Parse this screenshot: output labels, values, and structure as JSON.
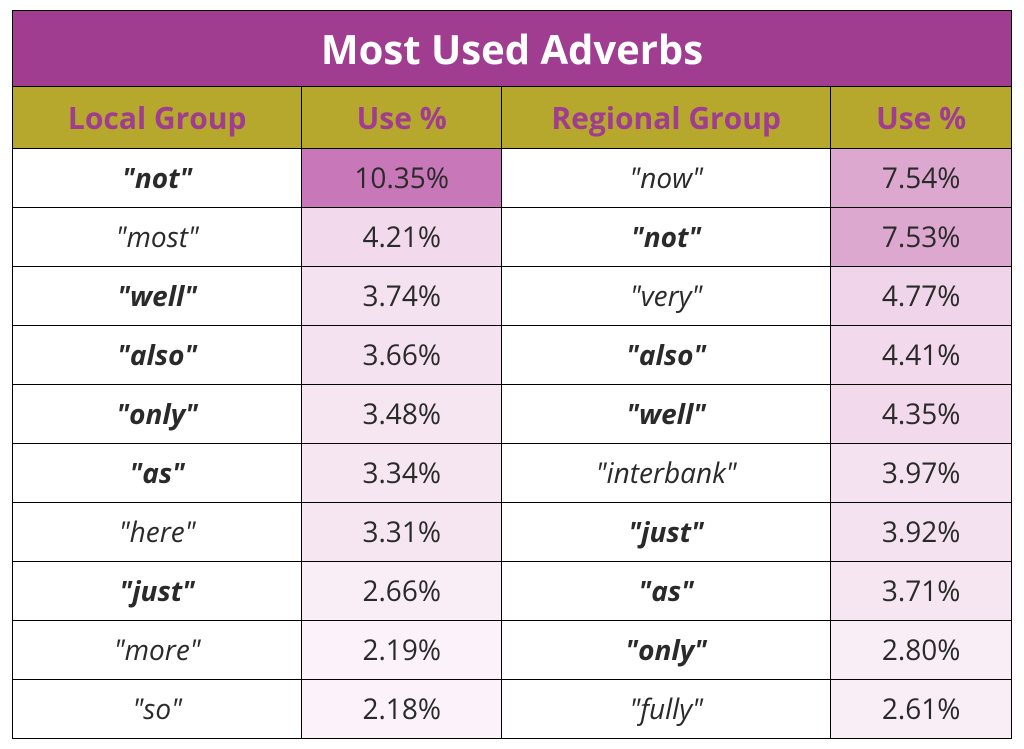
{
  "title": "Most Used Adverbs",
  "title_bg": "#a03d91",
  "title_color": "#ffffff",
  "header_bg": "#b5a82c",
  "header_color": "#a03d91",
  "columns": [
    {
      "label": "Local Group",
      "width": "29%"
    },
    {
      "label": "Use %",
      "width": "20%"
    },
    {
      "label": "Regional Group",
      "width": "33%"
    },
    {
      "label": "Use %",
      "width": "18%"
    }
  ],
  "rows": [
    {
      "local_word": "\"not\"",
      "local_bold": true,
      "local_pct": "10.35%",
      "local_pct_bg": "#c878b8",
      "regional_word": "\"now\"",
      "regional_bold": false,
      "regional_pct": "7.54%",
      "regional_pct_bg": "#dca8d0"
    },
    {
      "local_word": "\"most\"",
      "local_bold": false,
      "local_pct": "4.21%",
      "local_pct_bg": "#f2d9ec",
      "regional_word": "\"not\"",
      "regional_bold": true,
      "regional_pct": "7.53%",
      "regional_pct_bg": "#dca8d0"
    },
    {
      "local_word": "\"well\"",
      "local_bold": true,
      "local_pct": "3.74%",
      "local_pct_bg": "#f5e2f0",
      "regional_word": "\"very\"",
      "regional_bold": false,
      "regional_pct": "4.77%",
      "regional_pct_bg": "#f0d4e9"
    },
    {
      "local_word": "\"also\"",
      "local_bold": true,
      "local_pct": "3.66%",
      "local_pct_bg": "#f5e2f0",
      "regional_word": "\"also\"",
      "regional_bold": true,
      "regional_pct": "4.41%",
      "regional_pct_bg": "#f2d9ec"
    },
    {
      "local_word": "\"only\"",
      "local_bold": true,
      "local_pct": "3.48%",
      "local_pct_bg": "#f6e6f2",
      "regional_word": "\"well\"",
      "regional_bold": true,
      "regional_pct": "4.35%",
      "regional_pct_bg": "#f2d9ec"
    },
    {
      "local_word": "\"as\"",
      "local_bold": true,
      "local_pct": "3.34%",
      "local_pct_bg": "#f6e6f2",
      "regional_word": "\"interbank\"",
      "regional_bold": false,
      "regional_pct": "3.97%",
      "regional_pct_bg": "#f5e2f0"
    },
    {
      "local_word": "\"here\"",
      "local_bold": false,
      "local_pct": "3.31%",
      "local_pct_bg": "#f6e6f2",
      "regional_word": "\"just\"",
      "regional_bold": true,
      "regional_pct": "3.92%",
      "regional_pct_bg": "#f5e2f0"
    },
    {
      "local_word": "\"just\"",
      "local_bold": true,
      "local_pct": "2.66%",
      "local_pct_bg": "#f9eef6",
      "regional_word": "\"as\"",
      "regional_bold": true,
      "regional_pct": "3.71%",
      "regional_pct_bg": "#f6e6f2"
    },
    {
      "local_word": "\"more\"",
      "local_bold": false,
      "local_pct": "2.19%",
      "local_pct_bg": "#fbf3f9",
      "regional_word": "\"only\"",
      "regional_bold": true,
      "regional_pct": "2.80%",
      "regional_pct_bg": "#f9eef6"
    },
    {
      "local_word": "\"so\"",
      "local_bold": false,
      "local_pct": "2.18%",
      "local_pct_bg": "#fbf3f9",
      "regional_word": "\"fully\"",
      "regional_bold": false,
      "regional_pct": "2.61%",
      "regional_pct_bg": "#f9eef6"
    }
  ]
}
